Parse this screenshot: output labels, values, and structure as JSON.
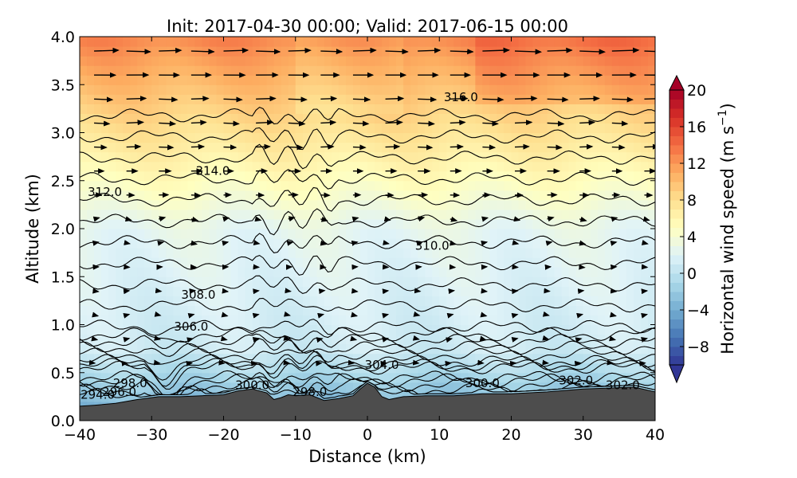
{
  "chart_data": {
    "type": "contour",
    "title": "Init: 2017-04-30 00:00; Valid: 2017-06-15 00:00",
    "xlabel": "Distance (km)",
    "ylabel": "Altitude (km)",
    "xlim": [
      -40,
      40
    ],
    "ylim": [
      0.0,
      4.0
    ],
    "xticks": [
      -40,
      -30,
      -20,
      -10,
      0,
      10,
      20,
      30,
      40
    ],
    "yticks": [
      0.0,
      0.5,
      1.0,
      1.5,
      2.0,
      2.5,
      3.0,
      3.5,
      4.0
    ],
    "xtick_labels": [
      "−40",
      "−30",
      "−20",
      "−10",
      "0",
      "10",
      "20",
      "30",
      "40"
    ],
    "ytick_labels": [
      "0.0",
      "0.5",
      "1.0",
      "1.5",
      "2.0",
      "2.5",
      "3.0",
      "3.5",
      "4.0"
    ],
    "colorbar": {
      "label": "Horizontal wind speed (m s",
      "label_sup": "−1",
      "label_close": ")",
      "range": [
        -10,
        20
      ],
      "ticks": [
        20,
        16,
        12,
        8,
        4,
        0,
        -4,
        -8
      ],
      "tick_labels": [
        "20",
        "16",
        "12",
        "8",
        "4",
        "0",
        "−4",
        "−8"
      ],
      "extend": "both",
      "colors": [
        "#313695",
        "#4575b4",
        "#74add1",
        "#abd9e9",
        "#e0f3f8",
        "#ffffbf",
        "#fee090",
        "#fdae61",
        "#f46d43",
        "#d73027",
        "#a50026"
      ]
    },
    "contour_labels": [
      {
        "text": "316.0",
        "x": 13.0,
        "y": 3.37
      },
      {
        "text": "314.0",
        "x": -21.5,
        "y": 2.6
      },
      {
        "text": "312.0",
        "x": -36.5,
        "y": 2.38
      },
      {
        "text": "310.0",
        "x": 9.0,
        "y": 1.82
      },
      {
        "text": "308.0",
        "x": -23.5,
        "y": 1.31
      },
      {
        "text": "306.0",
        "x": -24.5,
        "y": 0.98
      },
      {
        "text": "304.0",
        "x": 2.0,
        "y": 0.58
      },
      {
        "text": "302.0",
        "x": 29.0,
        "y": 0.42
      },
      {
        "text": "302.0",
        "x": 35.5,
        "y": 0.37
      },
      {
        "text": "300.0",
        "x": 16.0,
        "y": 0.39
      },
      {
        "text": "300.0",
        "x": -16.0,
        "y": 0.37
      },
      {
        "text": "298.0",
        "x": -33.0,
        "y": 0.39
      },
      {
        "text": "298.0",
        "x": -8.0,
        "y": 0.3
      },
      {
        "text": "296.0",
        "x": -34.5,
        "y": 0.3
      },
      {
        "text": "294.0",
        "x": -37.5,
        "y": 0.27
      }
    ],
    "isentropes_K": [
      294,
      296,
      298,
      300,
      302,
      304,
      306,
      308,
      310,
      312,
      314,
      316
    ],
    "terrain": {
      "x": [
        -40,
        -38,
        -35,
        -32,
        -29,
        -26,
        -23,
        -20,
        -18,
        -16,
        -14,
        -13,
        -12,
        -11,
        -10,
        -8,
        -6,
        -4,
        -2,
        -1,
        0,
        1,
        2,
        3,
        5,
        8,
        12,
        16,
        20,
        25,
        30,
        34,
        37,
        40
      ],
      "y": [
        0.15,
        0.16,
        0.18,
        0.22,
        0.25,
        0.25,
        0.26,
        0.27,
        0.31,
        0.33,
        0.29,
        0.22,
        0.24,
        0.27,
        0.26,
        0.27,
        0.21,
        0.23,
        0.26,
        0.33,
        0.39,
        0.35,
        0.25,
        0.22,
        0.25,
        0.26,
        0.26,
        0.28,
        0.28,
        0.3,
        0.33,
        0.34,
        0.35,
        0.3
      ]
    }
  }
}
